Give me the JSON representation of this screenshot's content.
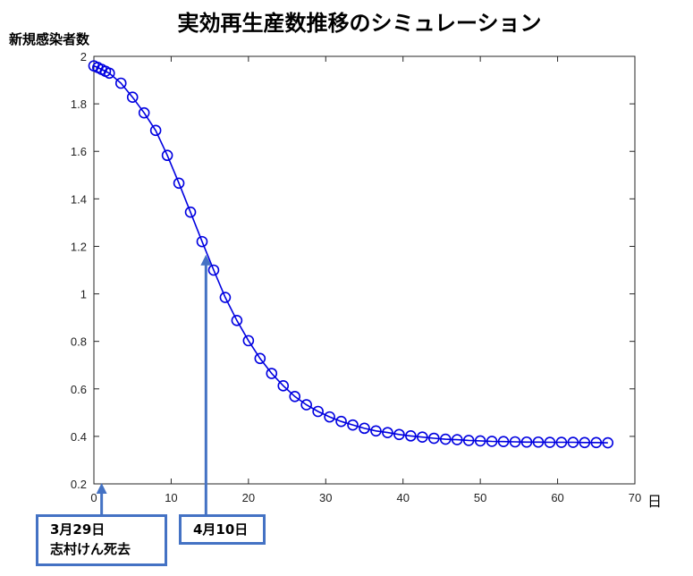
{
  "chart_data": {
    "type": "line",
    "title": "実効再生産数推移のシミュレーション",
    "ylabel": "新規感染者数",
    "xunit": "日",
    "xlim": [
      0,
      70
    ],
    "ylim": [
      0.2,
      2
    ],
    "xticks": [
      0,
      10,
      20,
      30,
      40,
      50,
      60,
      70
    ],
    "yticks": [
      0.2,
      0.4,
      0.6,
      0.8,
      1,
      1.2,
      1.4,
      1.6,
      1.8,
      2
    ],
    "grid": false,
    "marker": "circle",
    "color": "#0000E0",
    "series": [
      {
        "x": [
          0,
          0.5,
          1,
          1.5,
          2,
          3.5,
          5,
          6.5,
          8,
          9.5,
          11,
          12.5,
          14,
          15.5,
          17,
          18.5,
          20,
          21.5,
          23,
          24.5,
          26,
          27.5,
          29,
          30.5,
          32,
          33.5,
          35,
          36.5,
          38,
          39.5,
          41,
          42.5,
          44,
          45.5,
          47,
          48.5,
          50,
          51.5,
          53,
          54.5,
          56,
          57.5,
          59,
          60.5,
          62,
          63.5,
          65,
          66.5
        ],
        "y": [
          1.96,
          1.953,
          1.945,
          1.937,
          1.929,
          1.887,
          1.828,
          1.762,
          1.688,
          1.583,
          1.466,
          1.344,
          1.22,
          1.1,
          0.985,
          0.888,
          0.803,
          0.728,
          0.665,
          0.613,
          0.568,
          0.533,
          0.505,
          0.482,
          0.463,
          0.448,
          0.434,
          0.423,
          0.416,
          0.408,
          0.402,
          0.397,
          0.392,
          0.388,
          0.386,
          0.383,
          0.381,
          0.379,
          0.378,
          0.377,
          0.376,
          0.376,
          0.375,
          0.375,
          0.375,
          0.374,
          0.374,
          0.373
        ]
      }
    ],
    "annotations": [
      {
        "lines": [
          "3月29日",
          "志村けん死去"
        ],
        "x": 1
      },
      {
        "lines": [
          "4月10日"
        ],
        "x": 14.5
      }
    ],
    "annotation_color": "#4472C4"
  }
}
